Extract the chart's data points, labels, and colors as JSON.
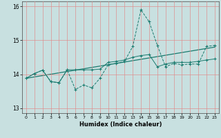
{
  "xlabel": "Humidex (Indice chaleur)",
  "xlim": [
    -0.5,
    23.5
  ],
  "ylim": [
    12.85,
    16.15
  ],
  "yticks": [
    13,
    14,
    15,
    16
  ],
  "xticks": [
    0,
    1,
    2,
    3,
    4,
    5,
    6,
    7,
    8,
    9,
    10,
    11,
    12,
    13,
    14,
    15,
    16,
    17,
    18,
    19,
    20,
    21,
    22,
    23
  ],
  "bg_color": "#c8e0e0",
  "line_color": "#1a7a6e",
  "grid_color": "#e08888",
  "series1_x": [
    0,
    1,
    2,
    3,
    4,
    5,
    6,
    7,
    8,
    9,
    10,
    11,
    12,
    13,
    14,
    15,
    16,
    17,
    18,
    19,
    20,
    21,
    22,
    23
  ],
  "series1_y": [
    13.88,
    14.02,
    14.12,
    13.78,
    13.75,
    14.13,
    13.55,
    13.68,
    13.6,
    13.88,
    14.28,
    14.32,
    14.38,
    14.82,
    15.9,
    15.55,
    14.85,
    14.22,
    14.32,
    14.28,
    14.3,
    14.3,
    14.82,
    14.85
  ],
  "series2_x": [
    0,
    1,
    2,
    3,
    4,
    5,
    6,
    7,
    8,
    9,
    10,
    11,
    12,
    13,
    14,
    15,
    16,
    17,
    18,
    19,
    20,
    21,
    22,
    23
  ],
  "series2_y": [
    13.88,
    14.02,
    14.12,
    13.78,
    13.75,
    14.13,
    14.13,
    14.13,
    14.13,
    14.15,
    14.35,
    14.38,
    14.42,
    14.5,
    14.55,
    14.58,
    14.22,
    14.3,
    14.35,
    14.35,
    14.35,
    14.38,
    14.42,
    14.45
  ],
  "trend_x": [
    0,
    23
  ],
  "trend_y": [
    13.88,
    14.8
  ]
}
